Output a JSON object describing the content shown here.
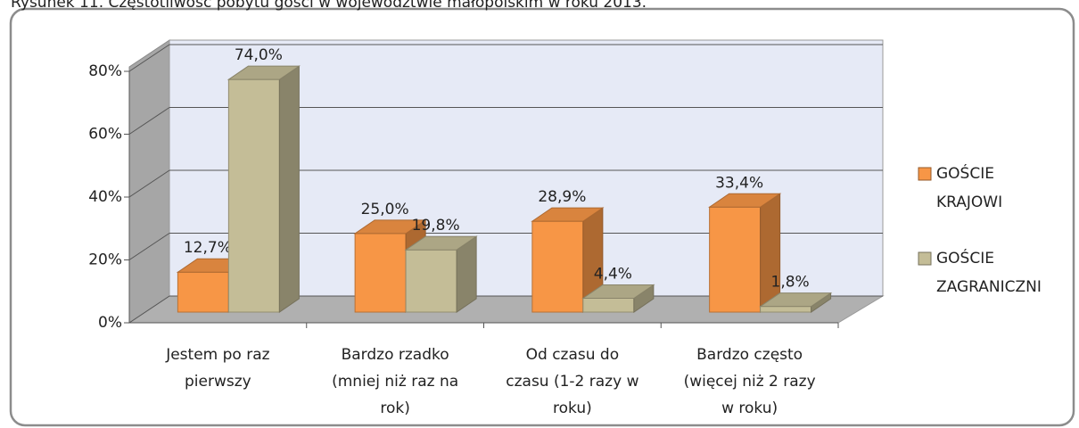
{
  "chart_data": {
    "type": "bar3d",
    "title": "Rysunek 11.     Częstotliwość pobytu gości w województwie małopolskim w roku 2013.",
    "categories": [
      "Jestem po raz pierwszy",
      "Bardzo rzadko (mniej niż raz na rok)",
      "Od czasu do czasu (1-2 razy w roku)",
      "Bardzo często (więcej niż 2 razy w roku)"
    ],
    "series": [
      {
        "name": "GOŚCIE KRAJOWI",
        "color": "#f79646",
        "values": [
          12.7,
          25.0,
          28.9,
          33.4
        ],
        "value_labels": [
          "12,7%",
          "25,0%",
          "28,9%",
          "33,4%"
        ]
      },
      {
        "name": "GOŚCIE ZAGRANICZNI",
        "color": "#c4bd97",
        "values": [
          74.0,
          19.8,
          4.4,
          1.8
        ],
        "value_labels": [
          "74,0%",
          "19,8%",
          "4,4%",
          "1,8%"
        ]
      }
    ],
    "ylim": [
      0,
      80
    ],
    "yticks": [
      {
        "value": 0,
        "label": "0%"
      },
      {
        "value": 20,
        "label": "20%"
      },
      {
        "value": 40,
        "label": "40%"
      },
      {
        "value": 60,
        "label": "60%"
      },
      {
        "value": 80,
        "label": "80%"
      }
    ],
    "grid": true,
    "legend": "right"
  }
}
